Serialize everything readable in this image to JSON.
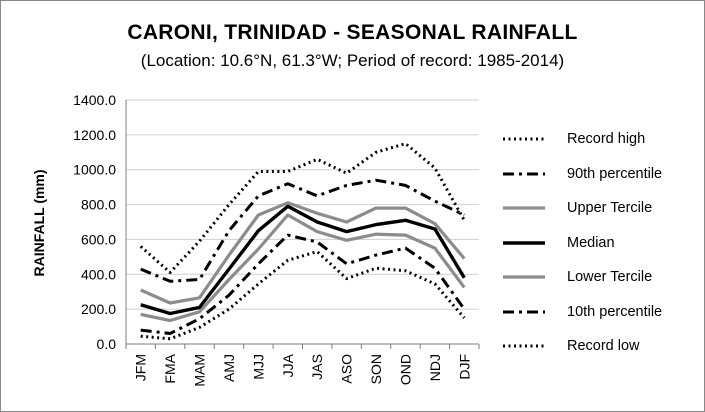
{
  "title": "CARONI, TRINIDAD - SEASONAL RAINFALL",
  "subtitle": "(Location: 10.6°N, 61.3°W; Period of record: 1985-2014)",
  "chart_data": {
    "type": "line",
    "title": "CARONI, TRINIDAD - SEASONAL RAINFALL",
    "subtitle": "(Location: 10.6°N, 61.3°W; Period of record: 1985-2014)",
    "xlabel": "",
    "ylabel": "RAINFALL (mm)",
    "ylim": [
      0,
      1400
    ],
    "yticks": [
      0,
      200,
      400,
      600,
      800,
      1000,
      1200,
      1400
    ],
    "ytick_labels": [
      "0.0",
      "200.0",
      "400.0",
      "600.0",
      "800.0",
      "1000.0",
      "1200.0",
      "1400.0"
    ],
    "grid": "horizontal",
    "legend_position": "right",
    "categories": [
      "JFM",
      "FMA",
      "MAM",
      "AMJ",
      "MJJ",
      "JJA",
      "JAS",
      "ASO",
      "SON",
      "OND",
      "NDJ",
      "DJF"
    ],
    "series": [
      {
        "name": "Record high",
        "style": "dotted",
        "color": "#000000",
        "values": [
          560,
          410,
          590,
          800,
          990,
          990,
          1060,
          980,
          1100,
          1150,
          1010,
          710
        ]
      },
      {
        "name": "90th percentile",
        "style": "dashdot",
        "color": "#000000",
        "values": [
          430,
          360,
          370,
          650,
          850,
          920,
          850,
          910,
          940,
          910,
          820,
          740
        ]
      },
      {
        "name": "Upper Tercile",
        "style": "solid-gray",
        "color": "#8c8c8c",
        "values": [
          310,
          235,
          265,
          510,
          740,
          810,
          750,
          700,
          780,
          780,
          690,
          490
        ]
      },
      {
        "name": "Median",
        "style": "solid-black",
        "color": "#000000",
        "values": [
          225,
          175,
          210,
          430,
          650,
          790,
          700,
          645,
          685,
          710,
          660,
          380
        ]
      },
      {
        "name": "Lower Tercile",
        "style": "solid-gray",
        "color": "#8c8c8c",
        "values": [
          170,
          135,
          185,
          370,
          545,
          740,
          645,
          595,
          630,
          625,
          550,
          325
        ]
      },
      {
        "name": "10th percentile",
        "style": "dashdot",
        "color": "#000000",
        "values": [
          80,
          60,
          145,
          280,
          460,
          625,
          585,
          460,
          510,
          550,
          435,
          200
        ]
      },
      {
        "name": "Record low",
        "style": "dotted",
        "color": "#000000",
        "values": [
          45,
          30,
          95,
          200,
          345,
          480,
          530,
          375,
          435,
          420,
          345,
          150
        ]
      }
    ]
  }
}
